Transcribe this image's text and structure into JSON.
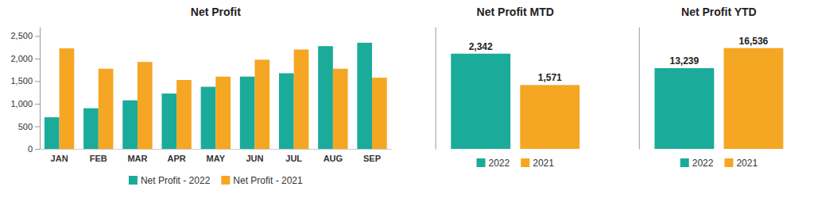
{
  "chart_data": [
    {
      "type": "bar",
      "title": "Net Profit",
      "categories": [
        "JAN",
        "FEB",
        "MAR",
        "APR",
        "MAY",
        "JUN",
        "JUL",
        "AUG",
        "SEP"
      ],
      "series": [
        {
          "name": "Net Profit - 2022",
          "color": "#1aab9b",
          "values": [
            700,
            900,
            1075,
            1225,
            1375,
            1600,
            1675,
            2275,
            2350
          ]
        },
        {
          "name": "Net Profit - 2021",
          "color": "#f5a623",
          "values": [
            2225,
            1775,
            1925,
            1525,
            1600,
            1975,
            2200,
            1775,
            1575
          ]
        }
      ],
      "ylim": [
        0,
        2700
      ],
      "yticks": [
        0,
        500,
        {
          "value": 1000,
          "label": "1,000"
        },
        {
          "value": 1500,
          "label": "1,500"
        },
        {
          "value": 2000,
          "label": "2,000"
        },
        {
          "value": 2500,
          "label": "2,500"
        }
      ],
      "grid": false,
      "legend": "bottom"
    },
    {
      "type": "bar",
      "title": "Net Profit MTD",
      "categories": [
        null
      ],
      "series": [
        {
          "name": "2022",
          "color": "#1aab9b",
          "values": [
            2342
          ],
          "value_labels": [
            "2,342"
          ]
        },
        {
          "name": "2021",
          "color": "#f5a623",
          "values": [
            1571
          ],
          "value_labels": [
            "1,571"
          ]
        }
      ],
      "ylim": [
        0,
        3000
      ],
      "grid": false,
      "legend": "bottom",
      "data_labels": true,
      "tick_labels": false
    },
    {
      "type": "bar",
      "title": "Net Profit YTD",
      "categories": [
        null
      ],
      "series": [
        {
          "name": "2022",
          "color": "#1aab9b",
          "values": [
            13239
          ],
          "value_labels": [
            "13,239"
          ]
        },
        {
          "name": "2021",
          "color": "#f5a623",
          "values": [
            16536
          ],
          "value_labels": [
            "16,536"
          ]
        }
      ],
      "ylim": [
        0,
        20000
      ],
      "grid": false,
      "legend": "bottom",
      "data_labels": true,
      "tick_labels": false
    }
  ]
}
